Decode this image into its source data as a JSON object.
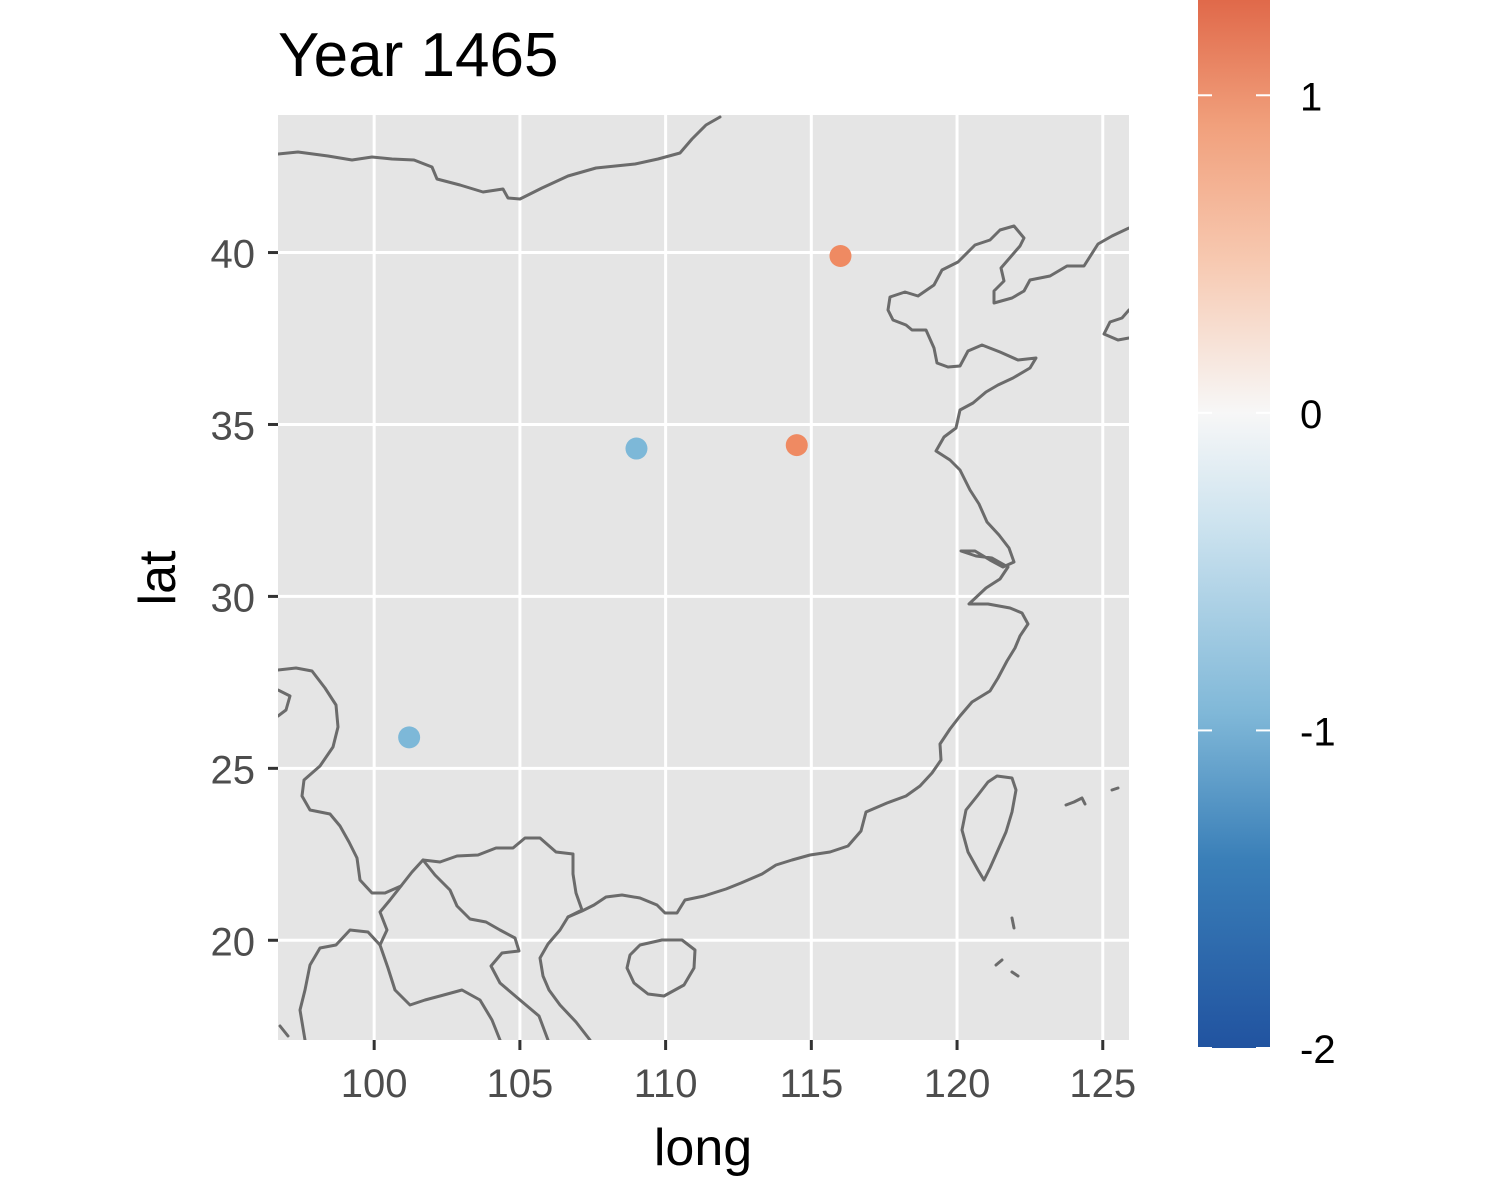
{
  "chart_data": {
    "type": "scatter",
    "title": "Year 1465",
    "xlabel": "long",
    "ylabel": "lat",
    "xlim": [
      96.7,
      125.9
    ],
    "ylim": [
      17.1,
      44.0
    ],
    "x_ticks": [
      100,
      105,
      110,
      115,
      120,
      125
    ],
    "y_ticks": [
      20,
      25,
      30,
      35,
      40
    ],
    "x_tick_labels": [
      "100",
      "105",
      "110",
      "115",
      "120",
      "125"
    ],
    "y_tick_labels": [
      "20",
      "25",
      "30",
      "35",
      "40"
    ],
    "grid": true,
    "basemap": "country and coastline outlines",
    "points": [
      {
        "x": 116.0,
        "y": 39.9,
        "value": 0.95
      },
      {
        "x": 114.5,
        "y": 34.4,
        "value": 0.95
      },
      {
        "x": 109.0,
        "y": 34.3,
        "value": -0.9
      },
      {
        "x": 101.2,
        "y": 25.9,
        "value": -0.9
      }
    ],
    "colorbar": {
      "position": "right",
      "range": [
        -2.0,
        1.3
      ],
      "ticks": [
        -2,
        -1,
        0,
        1
      ],
      "tick_labels": [
        "-2",
        "-1",
        "0",
        "1"
      ],
      "low_color": "#2153a0",
      "mid_color": "#f7f7f7",
      "high_color": "#e0694a"
    },
    "colors": {
      "panel_background": "#e5e5e5",
      "grid": "#ffffff",
      "outline": "#6b6b6b",
      "point_positive": "#ef8a62",
      "point_negative": "#7db8d8"
    }
  }
}
